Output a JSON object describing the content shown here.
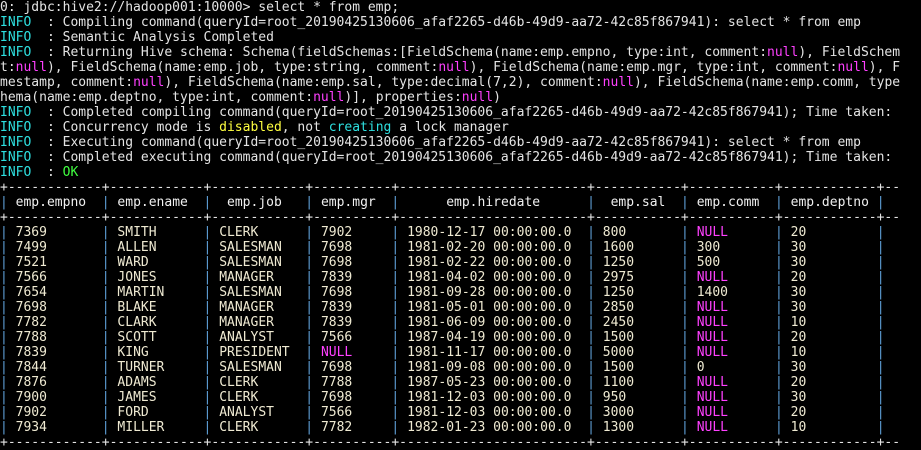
{
  "colors": {
    "info": "#2ee0e0",
    "null": "#ff40ff",
    "warn": "#ffff40",
    "ok": "#40ff40",
    "pipe": "#5fa0d8",
    "text": "#e4e4e4",
    "cell": "#efead2"
  },
  "log": [
    [
      {
        "t": "0: jdbc:hive2://hadoop001:10000> select * from emp;",
        "s": ""
      }
    ],
    [
      {
        "t": "INFO",
        "s": "info"
      },
      {
        "t": "  : Compiling command(queryId=root_20190425130606_afaf2265-d46b-49d9-aa72-42c85f867941): select * from emp",
        "s": ""
      }
    ],
    [
      {
        "t": "INFO",
        "s": "info"
      },
      {
        "t": "  : Semantic Analysis Completed",
        "s": ""
      }
    ],
    [
      {
        "t": "INFO",
        "s": "info"
      },
      {
        "t": "  : Returning Hive schema: Schema(fieldSchemas:[FieldSchema(name:emp.empno, type:int, comment:",
        "s": ""
      },
      {
        "t": "null",
        "s": "null"
      },
      {
        "t": "), FieldSchem",
        "s": ""
      }
    ],
    [
      {
        "t": "t:",
        "s": ""
      },
      {
        "t": "null",
        "s": "null"
      },
      {
        "t": "), FieldSchema(name:emp.job, type:string, comment:",
        "s": ""
      },
      {
        "t": "null",
        "s": "null"
      },
      {
        "t": "), FieldSchema(name:emp.mgr, type:int, comment:",
        "s": ""
      },
      {
        "t": "null",
        "s": "null"
      },
      {
        "t": "), F",
        "s": ""
      }
    ],
    [
      {
        "t": "mestamp, comment:",
        "s": ""
      },
      {
        "t": "null",
        "s": "null"
      },
      {
        "t": "), FieldSchema(name:emp.sal, type:decimal(7,2), comment:",
        "s": ""
      },
      {
        "t": "null",
        "s": "null"
      },
      {
        "t": "), FieldSchema(name:emp.comm, type",
        "s": ""
      }
    ],
    [
      {
        "t": "hema(name:emp.deptno, type:int, comment:",
        "s": ""
      },
      {
        "t": "null",
        "s": "null"
      },
      {
        "t": ")], properties:",
        "s": ""
      },
      {
        "t": "null",
        "s": "null"
      },
      {
        "t": ")",
        "s": ""
      }
    ],
    [
      {
        "t": "INFO",
        "s": "info"
      },
      {
        "t": "  : Completed compiling command(queryId=root_20190425130606_afaf2265-d46b-49d9-aa72-42c85f867941); Time taken:",
        "s": ""
      }
    ],
    [
      {
        "t": "INFO",
        "s": "info"
      },
      {
        "t": "  : Concurrency mode is ",
        "s": ""
      },
      {
        "t": "disabled",
        "s": "warn"
      },
      {
        "t": ", not ",
        "s": ""
      },
      {
        "t": "creating",
        "s": "cyan"
      },
      {
        "t": " a lock manager",
        "s": ""
      }
    ],
    [
      {
        "t": "INFO",
        "s": "info"
      },
      {
        "t": "  : Executing command(queryId=root_20190425130606_afaf2265-d46b-49d9-aa72-42c85f867941): select * from emp",
        "s": ""
      }
    ],
    [
      {
        "t": "INFO",
        "s": "info"
      },
      {
        "t": "  : Completed executing command(queryId=root_20190425130606_afaf2265-d46b-49d9-aa72-42c85f867941); Time taken:",
        "s": ""
      }
    ],
    [
      {
        "t": "INFO",
        "s": "info"
      },
      {
        "t": "  : ",
        "s": ""
      },
      {
        "t": "OK",
        "s": "ok"
      }
    ]
  ],
  "table": {
    "columns": [
      "emp.empno",
      "emp.ename",
      "emp.job",
      "emp.mgr",
      "emp.hiredate",
      "emp.sal",
      "emp.comm",
      "emp.deptno"
    ],
    "rows": [
      [
        "7369",
        "SMITH",
        "CLERK",
        "7902",
        "1980-12-17 00:00:00.0",
        "800",
        "NULL",
        "20"
      ],
      [
        "7499",
        "ALLEN",
        "SALESMAN",
        "7698",
        "1981-02-20 00:00:00.0",
        "1600",
        "300",
        "30"
      ],
      [
        "7521",
        "WARD",
        "SALESMAN",
        "7698",
        "1981-02-22 00:00:00.0",
        "1250",
        "500",
        "30"
      ],
      [
        "7566",
        "JONES",
        "MANAGER",
        "7839",
        "1981-04-02 00:00:00.0",
        "2975",
        "NULL",
        "20"
      ],
      [
        "7654",
        "MARTIN",
        "SALESMAN",
        "7698",
        "1981-09-28 00:00:00.0",
        "1250",
        "1400",
        "30"
      ],
      [
        "7698",
        "BLAKE",
        "MANAGER",
        "7839",
        "1981-05-01 00:00:00.0",
        "2850",
        "NULL",
        "30"
      ],
      [
        "7782",
        "CLARK",
        "MANAGER",
        "7839",
        "1981-06-09 00:00:00.0",
        "2450",
        "NULL",
        "10"
      ],
      [
        "7788",
        "SCOTT",
        "ANALYST",
        "7566",
        "1987-04-19 00:00:00.0",
        "1500",
        "NULL",
        "20"
      ],
      [
        "7839",
        "KING",
        "PRESIDENT",
        "NULL",
        "1981-11-17 00:00:00.0",
        "5000",
        "NULL",
        "10"
      ],
      [
        "7844",
        "TURNER",
        "SALESMAN",
        "7698",
        "1981-09-08 00:00:00.0",
        "1500",
        "0",
        "30"
      ],
      [
        "7876",
        "ADAMS",
        "CLERK",
        "7788",
        "1987-05-23 00:00:00.0",
        "1100",
        "NULL",
        "20"
      ],
      [
        "7900",
        "JAMES",
        "CLERK",
        "7698",
        "1981-12-03 00:00:00.0",
        "950",
        "NULL",
        "30"
      ],
      [
        "7902",
        "FORD",
        "ANALYST",
        "7566",
        "1981-12-03 00:00:00.0",
        "3000",
        "NULL",
        "20"
      ],
      [
        "7934",
        "MILLER",
        "CLERK",
        "7782",
        "1982-01-23 00:00:00.0",
        "1300",
        "NULL",
        "10"
      ]
    ]
  }
}
